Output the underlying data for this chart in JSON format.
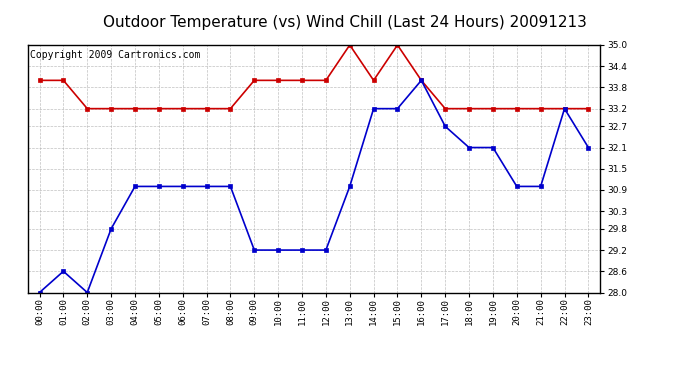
{
  "title": "Outdoor Temperature (vs) Wind Chill (Last 24 Hours) 20091213",
  "copyright": "Copyright 2009 Cartronics.com",
  "x_labels": [
    "00:00",
    "01:00",
    "02:00",
    "03:00",
    "04:00",
    "05:00",
    "06:00",
    "07:00",
    "08:00",
    "09:00",
    "10:00",
    "11:00",
    "12:00",
    "13:00",
    "14:00",
    "15:00",
    "16:00",
    "17:00",
    "18:00",
    "19:00",
    "20:00",
    "21:00",
    "22:00",
    "23:00"
  ],
  "red_y": [
    34.0,
    34.0,
    33.2,
    33.2,
    33.2,
    33.2,
    33.2,
    33.2,
    33.2,
    34.0,
    34.0,
    34.0,
    34.0,
    35.0,
    34.0,
    35.0,
    34.0,
    33.2,
    33.2,
    33.2,
    33.2,
    33.2,
    33.2,
    33.2
  ],
  "blue_y": [
    28.0,
    28.6,
    28.0,
    29.8,
    31.0,
    31.0,
    31.0,
    31.0,
    31.0,
    29.2,
    29.2,
    29.2,
    29.2,
    31.0,
    33.2,
    33.2,
    34.0,
    32.7,
    32.1,
    32.1,
    31.0,
    31.0,
    33.2,
    32.1
  ],
  "ylim_min": 28.0,
  "ylim_max": 35.0,
  "yticks": [
    28.0,
    28.6,
    29.2,
    29.8,
    30.3,
    30.9,
    31.5,
    32.1,
    32.7,
    33.2,
    33.8,
    34.4,
    35.0
  ],
  "red_color": "#cc0000",
  "blue_color": "#0000cc",
  "bg_color": "#ffffff",
  "grid_color": "#b0b0b0",
  "title_fontsize": 11,
  "copyright_fontsize": 7
}
